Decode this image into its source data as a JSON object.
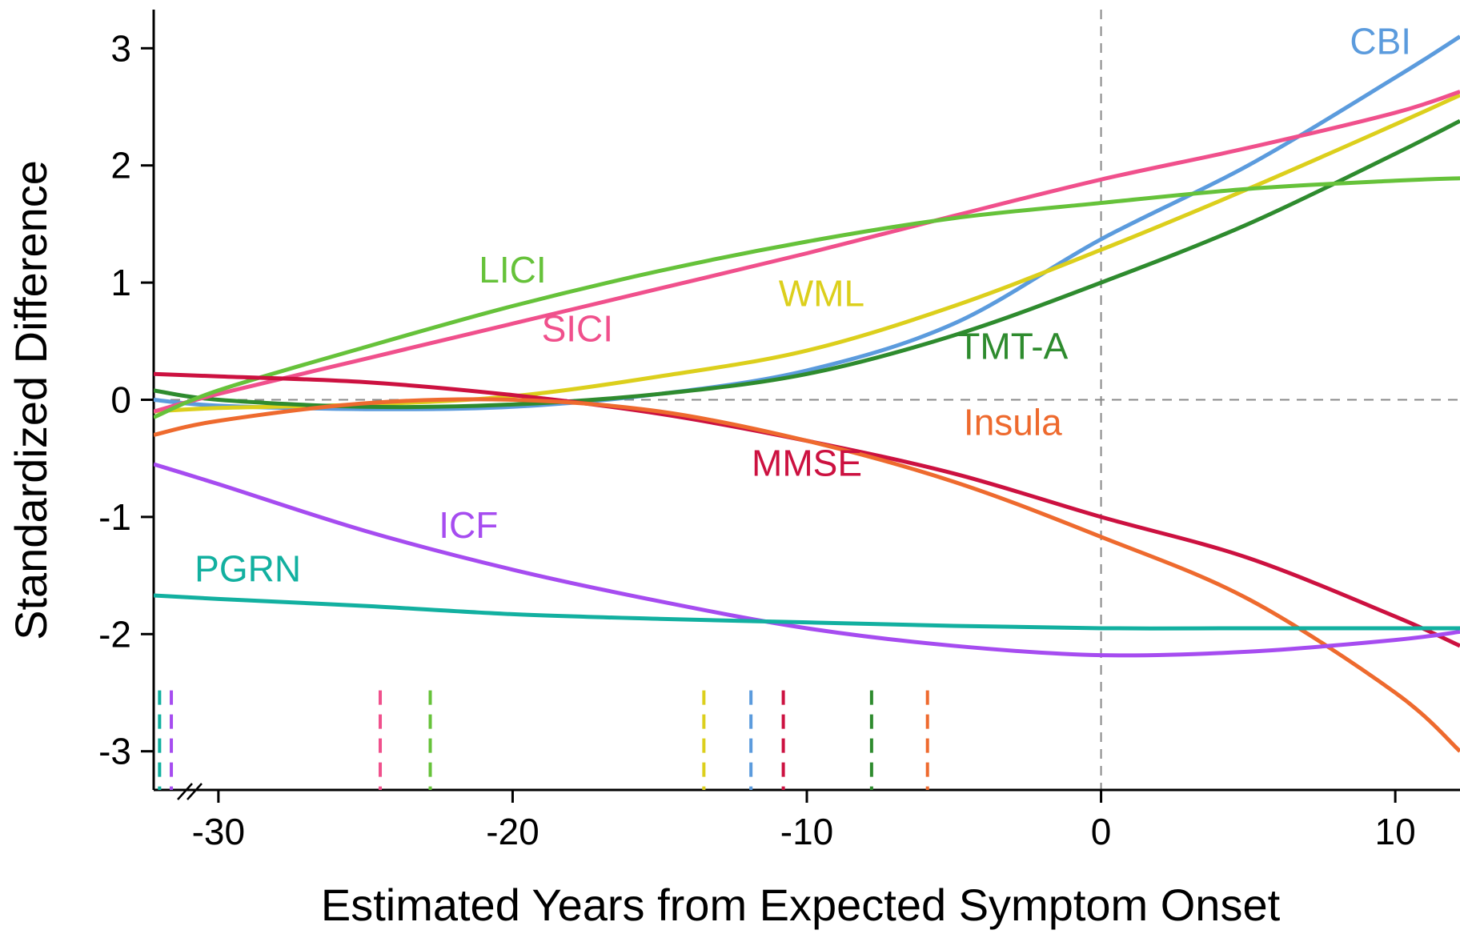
{
  "chart_data": {
    "type": "line",
    "xlabel": "Estimated Years from Expected Symptom Onset",
    "ylabel": "Standardized Difference",
    "x": [
      -32.2,
      -30,
      -25,
      -20,
      -15,
      -10,
      -5,
      0,
      5,
      10,
      12.2
    ],
    "xlim": [
      -32.2,
      12.2
    ],
    "ylim": [
      -3.33,
      3.33
    ],
    "xticks": [
      -30,
      -20,
      -10,
      0,
      10
    ],
    "yticks": [
      -3,
      -2,
      -1,
      0,
      1,
      2,
      3
    ],
    "series": [
      {
        "name": "CBI",
        "color": "#5b9bdd",
        "onset": -11.9,
        "values": [
          0.0,
          -0.05,
          -0.08,
          -0.06,
          0.05,
          0.25,
          0.65,
          1.37,
          2.0,
          2.75,
          3.1
        ]
      },
      {
        "name": "WML",
        "color": "#dccf1c",
        "onset": -13.5,
        "values": [
          -0.1,
          -0.07,
          -0.04,
          0.03,
          0.2,
          0.42,
          0.8,
          1.28,
          1.8,
          2.35,
          2.6
        ]
      },
      {
        "name": "TMT-A",
        "color": "#2e8b2e",
        "onset": -7.8,
        "values": [
          0.08,
          0.0,
          -0.06,
          -0.04,
          0.05,
          0.22,
          0.55,
          1.0,
          1.5,
          2.1,
          2.38
        ]
      },
      {
        "name": "SICI",
        "color": "#f0508c",
        "onset": -24.5,
        "values": [
          -0.1,
          0.05,
          0.35,
          0.65,
          0.95,
          1.25,
          1.57,
          1.88,
          2.15,
          2.45,
          2.63
        ]
      },
      {
        "name": "LICI",
        "color": "#66c23a",
        "onset": -22.8,
        "values": [
          -0.15,
          0.08,
          0.45,
          0.8,
          1.1,
          1.35,
          1.55,
          1.68,
          1.8,
          1.87,
          1.89
        ]
      },
      {
        "name": "MMSE",
        "color": "#cc1140",
        "onset": -10.8,
        "values": [
          0.22,
          0.2,
          0.15,
          0.04,
          -0.12,
          -0.35,
          -0.63,
          -1.0,
          -1.35,
          -1.85,
          -2.1
        ]
      },
      {
        "name": "Insula",
        "color": "#ee6a2e",
        "onset": -5.9,
        "values": [
          -0.3,
          -0.18,
          -0.03,
          0.0,
          -0.1,
          -0.35,
          -0.7,
          -1.17,
          -1.7,
          -2.5,
          -3.0
        ]
      },
      {
        "name": "ICF",
        "color": "#a64cf0",
        "onset": -31.6,
        "values": [
          -0.55,
          -0.72,
          -1.12,
          -1.45,
          -1.72,
          -1.95,
          -2.1,
          -2.18,
          -2.15,
          -2.05,
          -1.98
        ]
      },
      {
        "name": "PGRN",
        "color": "#12b0a0",
        "onset": -32.0,
        "values": [
          -1.67,
          -1.7,
          -1.76,
          -1.83,
          -1.87,
          -1.9,
          -1.93,
          -1.95,
          -1.95,
          -1.95,
          -1.95
        ]
      }
    ]
  }
}
